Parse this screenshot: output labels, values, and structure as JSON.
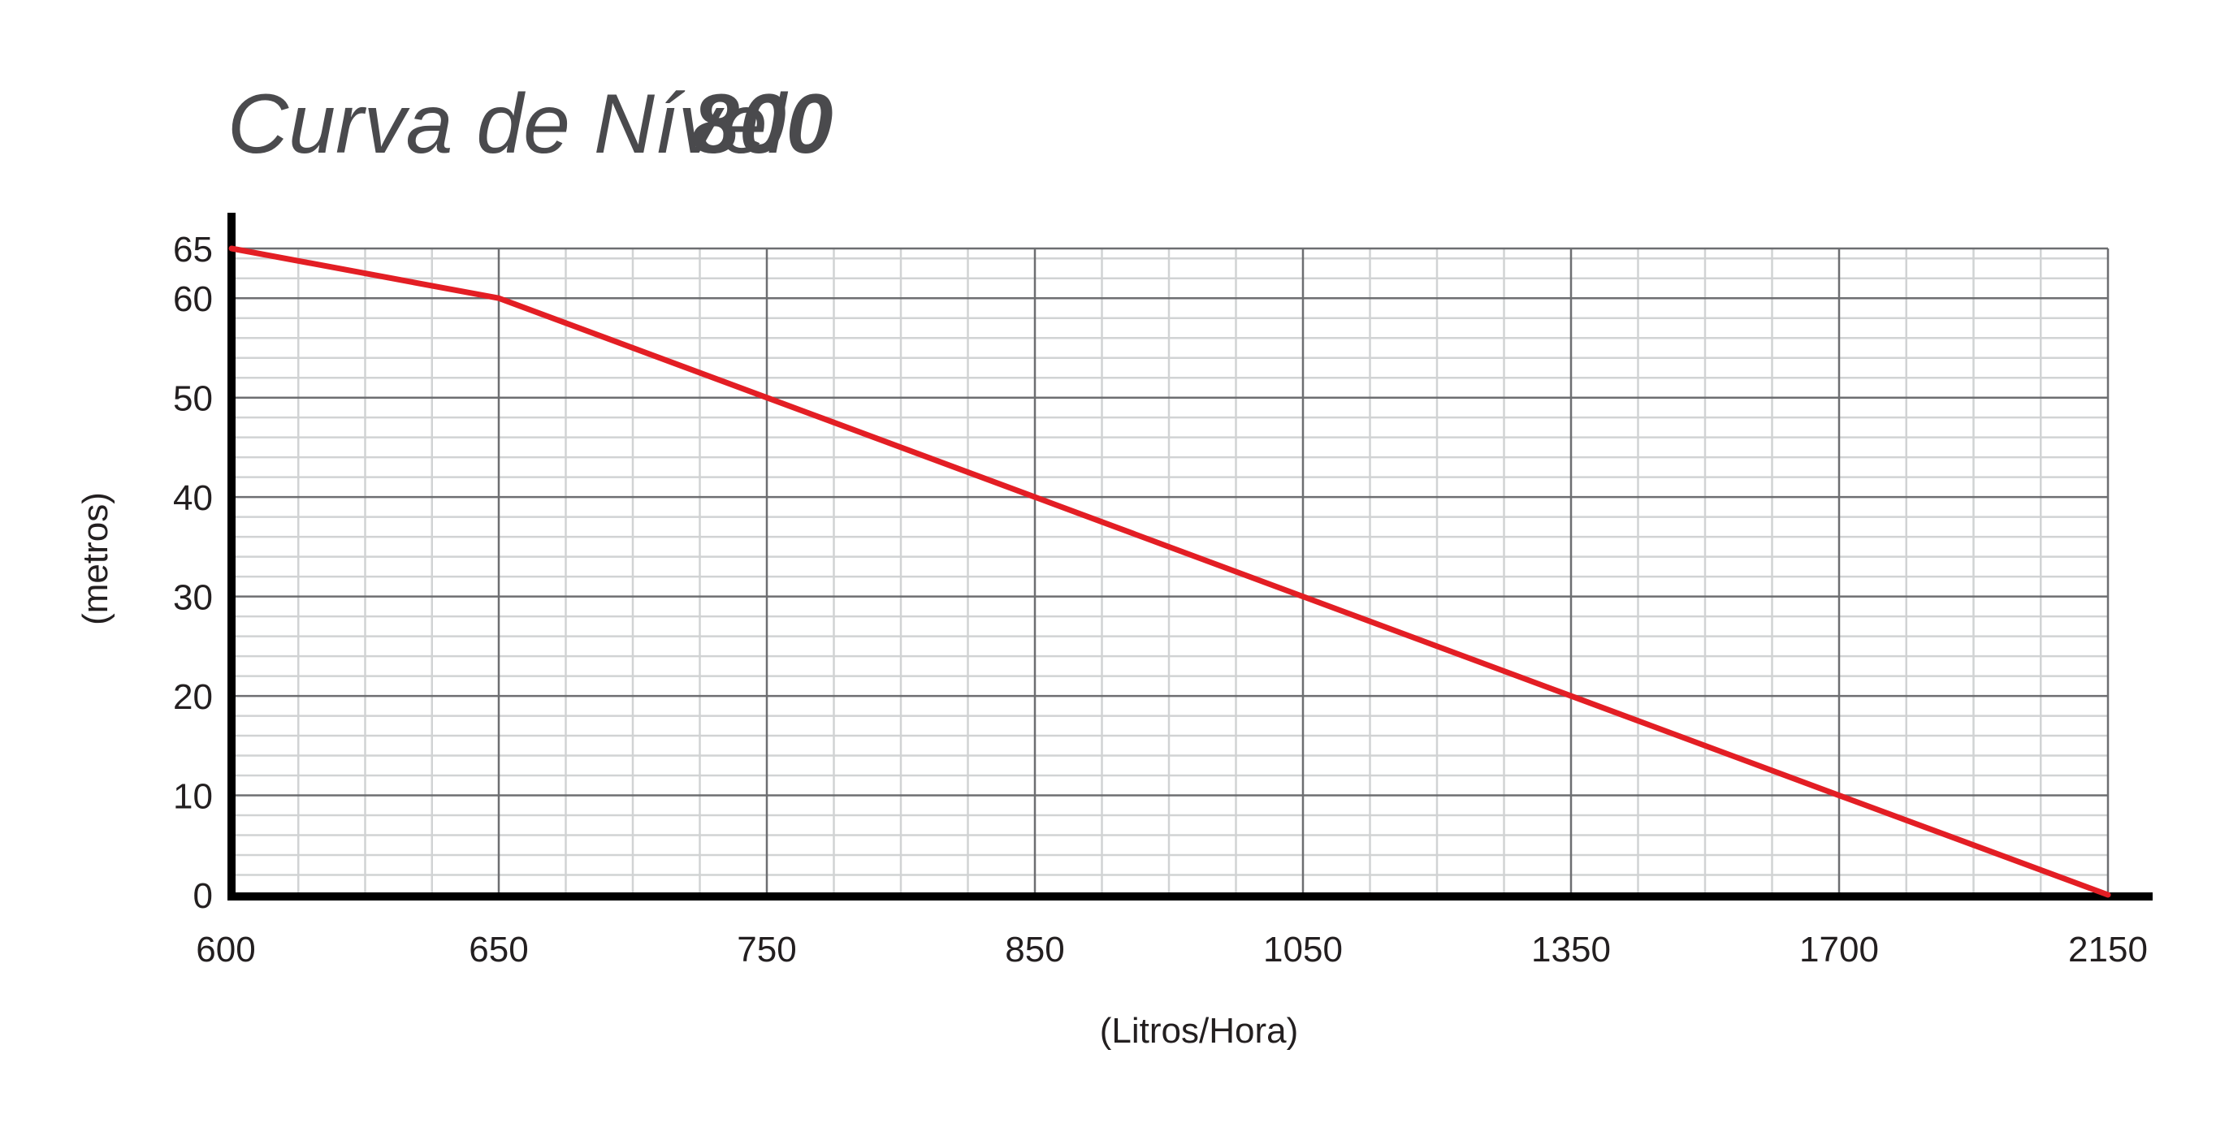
{
  "chart_data": {
    "type": "line",
    "title": "Curva de Nível",
    "model": "800",
    "xlabel": "(Litros/Hora)",
    "ylabel": "(metros)",
    "x_ticks": [
      "600",
      "650",
      "750",
      "850",
      "1050",
      "1350",
      "1700",
      "2150"
    ],
    "y_ticks": [
      "0",
      "10",
      "20",
      "30",
      "40",
      "50",
      "60",
      "65"
    ],
    "ylim": [
      0,
      65
    ],
    "grid": true,
    "series": [
      {
        "x": [
          600,
          650,
          750,
          850,
          1050,
          1350,
          1700,
          2150
        ],
        "y": [
          65,
          60,
          50,
          40,
          30,
          20,
          10,
          0
        ],
        "color": "#e31e24"
      }
    ]
  },
  "colors": {
    "line": "#e31e24",
    "axis": "#000000",
    "grid_major": "#6d6e71",
    "grid_minor": "#d1d3d4",
    "title": "#4a4a4d"
  }
}
